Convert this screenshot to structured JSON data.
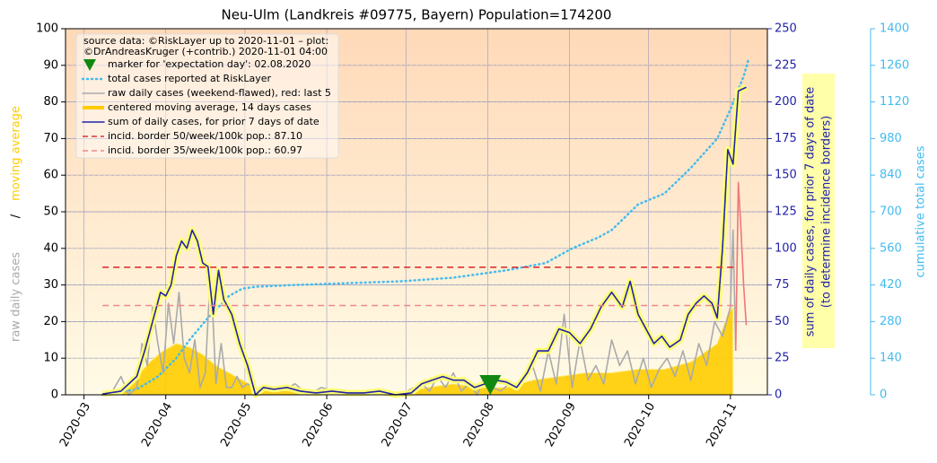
{
  "chart_data": {
    "type": "line",
    "title": "Neu-Ulm (Landkreis #09775, Bayern) Population=174200",
    "legend_source": [
      "source data: ©RiskLayer up to 2020-11-01 – plot:",
      "©DrAndreasKruger (+contrib.) 2020-11-01 04:00"
    ],
    "ylabel": [
      "raw daily cases",
      "/",
      "moving average"
    ],
    "y2label": [
      "sum of daily cases, for prior 7 days of date",
      "(to determine incidence borders)"
    ],
    "y3label": "cumulative total cases",
    "xlim": [
      -7,
      259
    ],
    "xticks": [
      {
        "value": 0,
        "label": "2020-03"
      },
      {
        "value": 31,
        "label": "2020-04"
      },
      {
        "value": 61,
        "label": "2020-05"
      },
      {
        "value": 92,
        "label": "2020-06"
      },
      {
        "value": 122,
        "label": "2020-07"
      },
      {
        "value": 153,
        "label": "2020-08"
      },
      {
        "value": 184,
        "label": "2020-09"
      },
      {
        "value": 214,
        "label": "2020-10"
      },
      {
        "value": 245,
        "label": "2020-11"
      }
    ],
    "ylim": [
      0,
      100
    ],
    "yticks": [
      0,
      10,
      20,
      30,
      40,
      50,
      60,
      70,
      80,
      90,
      100
    ],
    "y2lim": [
      0,
      250
    ],
    "y2ticks": [
      0,
      25,
      50,
      75,
      100,
      125,
      150,
      175,
      200,
      225,
      250
    ],
    "y3lim": [
      0,
      1400
    ],
    "y3ticks": [
      0,
      140,
      280,
      420,
      560,
      700,
      840,
      980,
      1120,
      1260,
      1400
    ],
    "grid": true,
    "marker": {
      "name": "marker for 'expectation day': 02.08.2020",
      "x": 154,
      "color": "#118811"
    },
    "series": [
      {
        "name": "total cases reported at RiskLayer",
        "type": "line",
        "style": "dotted",
        "axis": "y3",
        "color": "#44bbee",
        "x": [
          7,
          20,
          28,
          35,
          40,
          47,
          55,
          60,
          65,
          80,
          100,
          120,
          140,
          160,
          175,
          185,
          195,
          200,
          210,
          220,
          230,
          240,
          245,
          250,
          252
        ],
        "values": [
          0,
          21,
          70,
          140,
          210,
          294,
          378,
          406,
          413,
          420,
          427,
          434,
          448,
          476,
          504,
          560,
          602,
          630,
          728,
          770,
          868,
          980,
          1092,
          1218,
          1288
        ]
      },
      {
        "name": "raw daily cases (weekend-flawed), red: last 5",
        "type": "line",
        "axis": "y",
        "color": "#aaaaaa",
        "x": [
          10,
          14,
          17,
          20,
          22,
          24,
          26,
          28,
          30,
          32,
          34,
          36,
          38,
          40,
          42,
          44,
          46,
          48,
          50,
          52,
          54,
          56,
          58,
          60,
          62,
          66,
          70,
          75,
          80,
          85,
          90,
          95,
          100,
          105,
          110,
          115,
          120,
          125,
          128,
          131,
          134,
          137,
          140,
          143,
          146,
          149,
          152,
          155,
          158,
          161,
          164,
          167,
          170,
          173,
          176,
          179,
          182,
          185,
          188,
          191,
          194,
          197,
          200,
          203,
          206,
          209,
          212,
          215,
          218,
          221,
          224,
          227,
          230,
          233,
          236,
          239,
          242,
          245,
          246,
          247
        ],
        "values": [
          0,
          5,
          0,
          2,
          14,
          8,
          24,
          14,
          6,
          25,
          14,
          28,
          10,
          6,
          15,
          2,
          6,
          35,
          3,
          14,
          2,
          2,
          5,
          2,
          3,
          1,
          2,
          1,
          3,
          0,
          2,
          1,
          0,
          1,
          1,
          0,
          0,
          2,
          3,
          1,
          5,
          2,
          6,
          1,
          3,
          0,
          5,
          2,
          1,
          3,
          2,
          5,
          8,
          1,
          12,
          3,
          22,
          2,
          15,
          4,
          8,
          3,
          15,
          8,
          12,
          3,
          10,
          2,
          7,
          10,
          5,
          12,
          4,
          14,
          8,
          20,
          16,
          24,
          45,
          12
        ]
      },
      {
        "type": "line",
        "axis": "y",
        "color": "#ee7777",
        "x": [
          247,
          248,
          249,
          250,
          251
        ],
        "values": [
          12,
          58,
          45,
          30,
          19
        ]
      },
      {
        "name": "centered moving average, 14 days cases",
        "type": "area",
        "axis": "y",
        "color": "#ffcc00",
        "x": [
          10,
          15,
          20,
          25,
          30,
          35,
          40,
          45,
          50,
          55,
          60,
          65,
          70,
          80,
          100,
          120,
          130,
          140,
          150,
          160,
          170,
          180,
          190,
          200,
          210,
          220,
          230,
          240,
          244,
          246
        ],
        "values": [
          0.5,
          2,
          5,
          9,
          12,
          14,
          13,
          11,
          8,
          6,
          4,
          2,
          1.5,
          1,
          0.5,
          0.5,
          2,
          3,
          2,
          2,
          4,
          5,
          6,
          6,
          7,
          7,
          9,
          14,
          22,
          24
        ]
      },
      {
        "name": "sum of daily cases, for prior 7 days of date",
        "type": "line",
        "axis": "y2",
        "color": "#2222aa",
        "x": [
          7,
          14,
          17,
          20,
          23,
          26,
          29,
          31,
          33,
          35,
          37,
          39,
          41,
          43,
          45,
          47,
          49,
          51,
          53,
          56,
          59,
          62,
          65,
          68,
          72,
          77,
          82,
          88,
          94,
          100,
          106,
          112,
          118,
          124,
          128,
          132,
          136,
          140,
          144,
          148,
          152,
          156,
          160,
          164,
          168,
          172,
          176,
          180,
          184,
          188,
          192,
          196,
          200,
          204,
          207,
          210,
          213,
          216,
          219,
          222,
          226,
          229,
          232,
          235,
          238,
          240,
          242,
          244,
          246,
          248,
          251
        ],
        "values": [
          0.5,
          2.5,
          7.5,
          12.5,
          30,
          50,
          70,
          67.5,
          75,
          95,
          105,
          100,
          112.5,
          105,
          90,
          87.5,
          55,
          85,
          65,
          55,
          35,
          20,
          0,
          5,
          3.75,
          5,
          2.5,
          1.25,
          2.5,
          1.25,
          1.25,
          2.5,
          0,
          1.25,
          7.5,
          10,
          12.5,
          10,
          10,
          5,
          7.5,
          10,
          8.75,
          5,
          15,
          30,
          30,
          45,
          42.5,
          35,
          45,
          60,
          70,
          60,
          77.5,
          55,
          45,
          35,
          40,
          32.5,
          37.5,
          55,
          62.5,
          67.5,
          62.5,
          52.5,
          100,
          167.5,
          157.5,
          207.5,
          210
        ]
      }
    ],
    "borders": [
      {
        "name": "incid. border 50/week/100k pop.: 87.10",
        "value": 87.1,
        "x": [
          7,
          247
        ],
        "color": "#dd3333",
        "axis": "y2"
      },
      {
        "name": "incid. border 35/week/100k pop.: 60.97",
        "value": 60.97,
        "x": [
          7,
          247
        ],
        "color": "#ee8888",
        "axis": "y2"
      }
    ]
  }
}
